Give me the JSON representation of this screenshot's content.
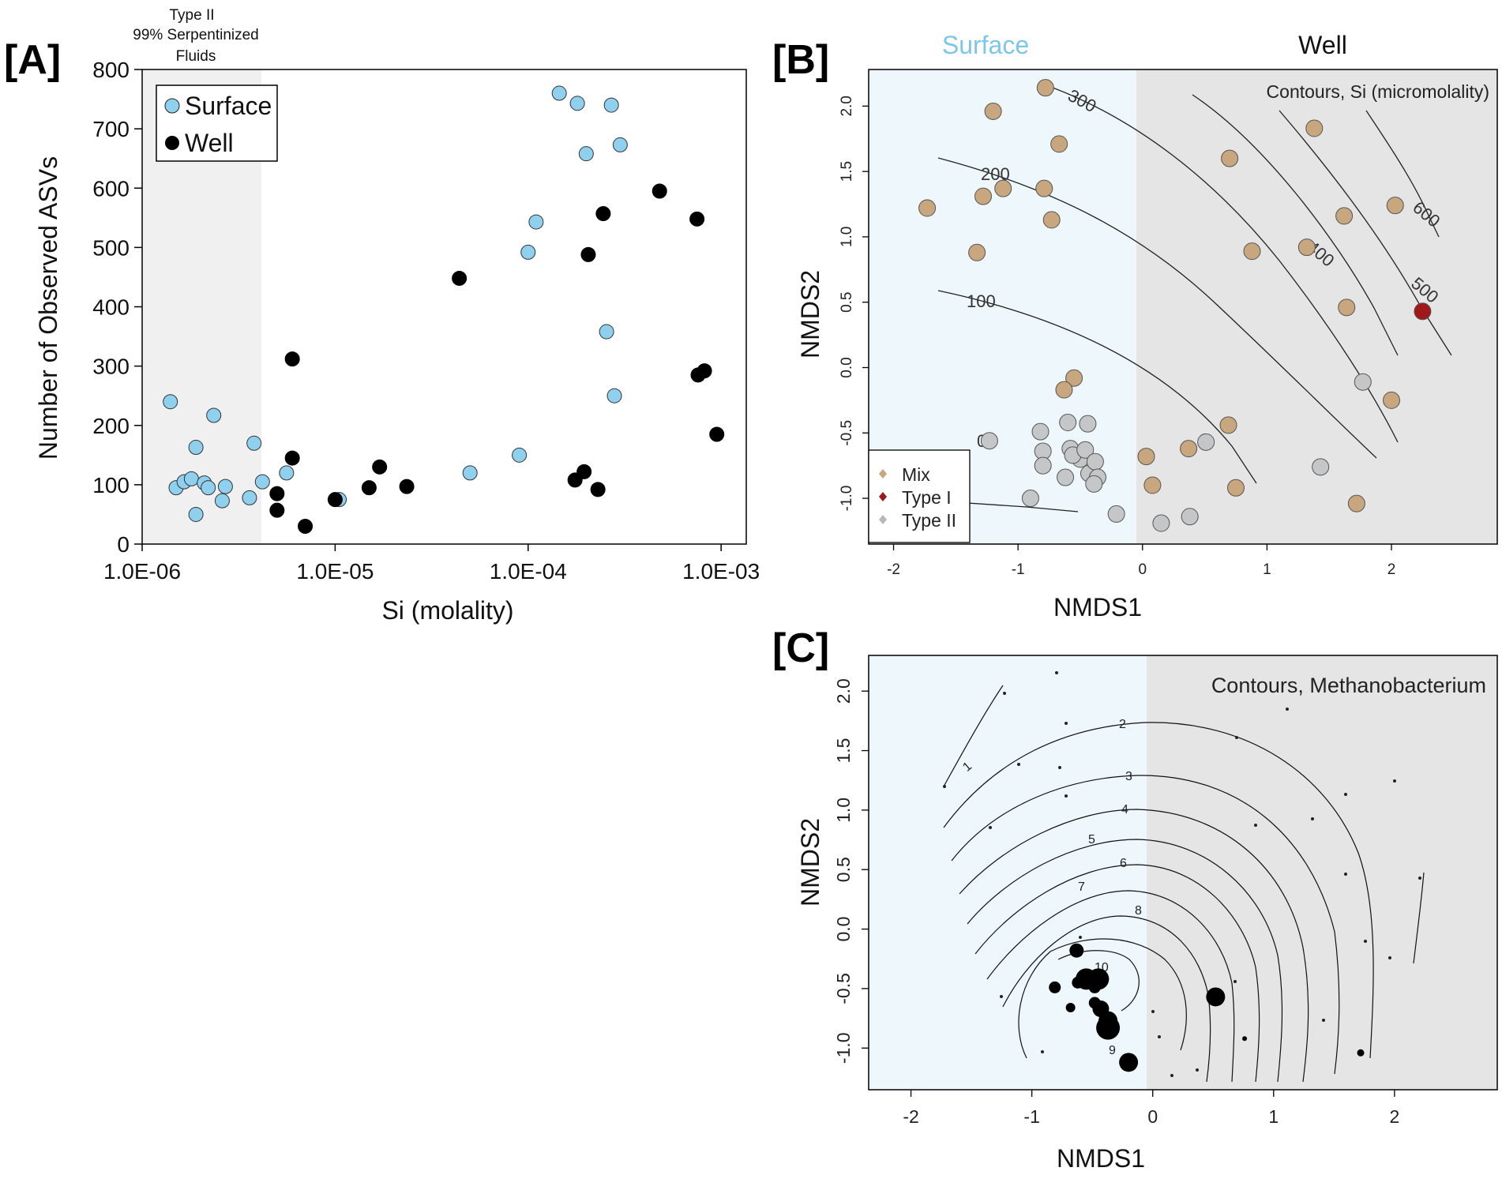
{
  "panel_labels": {
    "a": "[A]",
    "b": "[B]",
    "c": "[C]"
  },
  "colors": {
    "surface_point": "#8fd0ef",
    "well_point": "#000000",
    "mix": "#c8a67e",
    "type1": "#a01818",
    "type2": "#c4c6c8",
    "surface_bg": "#eef7fb",
    "well_bg": "#e5e5e5",
    "type2_bg": "#f0f0f0"
  },
  "chart_data": [
    {
      "id": "A",
      "type": "scatter",
      "title": "",
      "xlabel": "Si (molality)",
      "ylabel": "Number of Observed ASVs",
      "xscale": "log",
      "xlim": [
        1e-06,
        0.00135
      ],
      "ylim": [
        0,
        800
      ],
      "x_ticks": [
        1e-06,
        1e-05,
        0.0001,
        0.001
      ],
      "x_tick_labels": [
        "1.0E-06",
        "1.0E-05",
        "1.0E-04",
        "1.0E-03"
      ],
      "y_ticks": [
        0,
        100,
        200,
        300,
        400,
        500,
        600,
        700,
        800
      ],
      "y_tick_labels": [
        "0",
        "100",
        "200",
        "300",
        "400",
        "500",
        "600",
        "700",
        "800"
      ],
      "shaded_region": {
        "x_from": 1e-06,
        "x_to": 5e-06,
        "lines": [
          "Type II",
          "99% Serpentinized",
          "Fluids"
        ]
      },
      "legend": {
        "position": "top-left",
        "entries": [
          "Surface",
          "Well"
        ]
      },
      "series": [
        {
          "name": "Surface",
          "x": [
            1.4e-06,
            1.5e-06,
            1.65e-06,
            1.8e-06,
            1.9e-06,
            1.9e-06,
            2.1e-06,
            2.2e-06,
            2.35e-06,
            2.6e-06,
            2.7e-06,
            3.6e-06,
            3.8e-06,
            4.2e-06,
            5.6e-06,
            1.05e-05,
            5e-05,
            9e-05,
            0.0001,
            0.00011,
            0.000145,
            0.00018,
            0.0002,
            0.000255,
            0.00027,
            0.00028,
            0.0003
          ],
          "y": [
            240,
            95,
            105,
            110,
            163,
            50,
            103,
            95,
            217,
            73,
            97,
            78,
            170,
            105,
            120,
            75,
            120,
            150,
            492,
            543,
            760,
            743,
            658,
            358,
            740,
            250,
            673
          ]
        },
        {
          "name": "Well",
          "x": [
            5e-06,
            5e-06,
            6e-06,
            6e-06,
            7e-06,
            1e-05,
            1.5e-05,
            1.7e-05,
            2.35e-05,
            4.4e-05,
            0.000175,
            0.000195,
            0.000205,
            0.00023,
            0.000245,
            0.00048,
            0.00075,
            0.00076,
            0.00082,
            0.00095
          ],
          "y": [
            85,
            57,
            145,
            312,
            30,
            75,
            95,
            130,
            97,
            448,
            108,
            122,
            488,
            92,
            557,
            595,
            548,
            285,
            292,
            185
          ]
        }
      ]
    },
    {
      "id": "B",
      "type": "scatter",
      "title": "",
      "xlabel": "NMDS1",
      "ylabel": "NMDS2",
      "xlim": [
        -2.2,
        2.85
      ],
      "ylim": [
        -1.35,
        2.28
      ],
      "x_ticks": [
        -2,
        -1,
        0,
        1,
        2
      ],
      "x_tick_labels": [
        "-2",
        "-1",
        "0",
        "1",
        "2"
      ],
      "y_ticks": [
        -1.0,
        -0.5,
        0.0,
        0.5,
        1.0,
        1.5,
        2.0
      ],
      "y_tick_labels": [
        "-1.0",
        "-0.5",
        "0.0",
        "0.5",
        "1.0",
        "1.5",
        "2.0"
      ],
      "regions": [
        {
          "name": "Surface",
          "x_from": -2.2,
          "x_to": -0.05
        },
        {
          "name": "Well",
          "x_from": -0.05,
          "x_to": 2.85
        }
      ],
      "annotation": "Contours, Si (micromolality)",
      "contour_levels": [
        "0",
        "100",
        "200",
        "300",
        "400",
        "500",
        "600"
      ],
      "legend": {
        "position": "bottom-left",
        "entries": [
          "Mix",
          "Type I",
          "Type II"
        ]
      },
      "series": [
        {
          "name": "Mix",
          "x": [
            -0.78,
            -1.2,
            -0.67,
            -1.28,
            -1.12,
            -0.79,
            -1.73,
            -0.73,
            -1.33,
            -0.55,
            -0.63,
            0.7,
            1.38,
            1.62,
            2.03,
            1.32,
            0.88,
            1.64,
            2.0,
            0.69,
            0.03,
            0.08,
            0.37,
            0.75,
            1.72
          ],
          "y": [
            2.14,
            1.96,
            1.71,
            1.31,
            1.37,
            1.37,
            1.22,
            1.13,
            0.88,
            -0.08,
            -0.17,
            1.6,
            1.83,
            1.16,
            1.24,
            0.92,
            0.89,
            0.46,
            -0.25,
            -0.44,
            -0.68,
            -0.9,
            -0.62,
            -0.92,
            -1.04
          ]
        },
        {
          "name": "Type I",
          "x": [
            2.25
          ],
          "y": [
            0.43
          ]
        },
        {
          "name": "Type II",
          "x": [
            -1.23,
            -0.9,
            -0.82,
            -0.8,
            -0.8,
            -0.6,
            -0.58,
            -0.44,
            -0.5,
            -0.56,
            -0.46,
            -0.62,
            -0.43,
            -0.38,
            -0.36,
            -0.39,
            -0.21,
            0.15,
            0.38,
            0.51,
            1.43,
            1.77
          ],
          "y": [
            -0.56,
            -1.0,
            -0.49,
            -0.64,
            -0.75,
            -0.42,
            -0.62,
            -0.43,
            -0.7,
            -0.67,
            -0.63,
            -0.84,
            -0.81,
            -0.72,
            -0.84,
            -0.89,
            -1.12,
            -1.19,
            -1.14,
            -0.57,
            -0.76,
            -0.11
          ]
        }
      ]
    },
    {
      "id": "C",
      "type": "scatter",
      "title": "",
      "xlabel": "NMDS1",
      "ylabel": "NMDS2",
      "xlim": [
        -2.35,
        2.85
      ],
      "ylim": [
        -1.35,
        2.3
      ],
      "x_ticks": [
        -2,
        -1,
        0,
        1,
        2
      ],
      "x_tick_labels": [
        "-2",
        "-1",
        "0",
        "1",
        "2"
      ],
      "y_ticks": [
        -1.0,
        -0.5,
        0.0,
        0.5,
        1.0,
        1.5,
        2.0
      ],
      "y_tick_labels": [
        "-1.0",
        "-0.5",
        "0.0",
        "0.5",
        "1.0",
        "1.5",
        "2.0"
      ],
      "regions": [
        {
          "name": "Surface",
          "x_from": -2.35,
          "x_to": -0.05
        },
        {
          "name": "Well",
          "x_from": -0.05,
          "x_to": 2.85
        }
      ],
      "annotation": "Contours, Methanobacterium",
      "contour_levels": [
        "1",
        "2",
        "3",
        "4",
        "5",
        "6",
        "7",
        "8",
        "9",
        "10"
      ],
      "series": [
        {
          "name": "Methanobacterium abundance",
          "x": [
            -0.63,
            -0.55,
            -0.45,
            -0.81,
            -0.68,
            -0.48,
            -0.43,
            -0.37,
            -0.37,
            -0.2,
            0.52,
            0.76,
            1.72,
            -0.62,
            -0.48
          ],
          "y": [
            -0.18,
            -0.42,
            -0.42,
            -0.49,
            -0.66,
            -0.62,
            -0.67,
            -0.77,
            -0.83,
            -1.12,
            -0.57,
            -0.92,
            -1.04,
            -0.45,
            -0.49
          ],
          "size": [
            6,
            9,
            9,
            5,
            4,
            5,
            7,
            8,
            10,
            8,
            8,
            2,
            3,
            5,
            5
          ]
        }
      ]
    }
  ]
}
